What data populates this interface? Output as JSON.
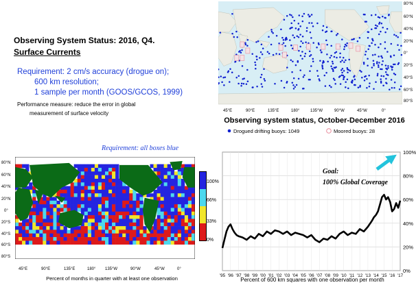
{
  "header": {
    "title": "Observing System Status:  2016, Q4.",
    "subtitle": "Surface Currents"
  },
  "requirement": {
    "line1": "Requirement: 2 cm/s accuracy (drogue on);",
    "line2": "600 km resolution;",
    "line3": "1 sample per month (GOOS/GCOS, 1999)"
  },
  "performance": {
    "line1": "Performance measure: reduce the error in global",
    "line2": "measurement of surface velocity"
  },
  "map_buoys": {
    "caption": "Observing system status, October-December 2016",
    "legend_drifting": "Drogued drifting buoys: 1049",
    "legend_moored": "Moored buoys: 28",
    "lat_labels": [
      "80°N",
      "60°N",
      "40°N",
      "20°N",
      "0°",
      "20°S",
      "40°S",
      "60°S",
      "80°S"
    ],
    "lon_labels": [
      "45°E",
      "90°E",
      "135°E",
      "180°",
      "135°W",
      "90°W",
      "45°W",
      "0°"
    ],
    "colors": {
      "ocean": "#d8eef5",
      "land": "#ecece4",
      "drifting": "#1020d0",
      "moored": "#e88a9a"
    }
  },
  "map_coverage": {
    "requirement": "Requirement: all boxes blue",
    "caption": "Percent of months in quarter with at least one observation",
    "lat_labels": [
      "80°N",
      "60°N",
      "40°N",
      "20°N",
      "0°",
      "20°S",
      "40°S",
      "60°S",
      "80°S"
    ],
    "lon_labels": [
      "45°E",
      "90°E",
      "135°E",
      "180°",
      "135°W",
      "90°W",
      "45°W",
      "0°"
    ],
    "legend": [
      {
        "label": "100%",
        "color": "#2424e0"
      },
      {
        "label": "66%",
        "color": "#4cd8ee"
      },
      {
        "label": "33%",
        "color": "#f2e62a"
      },
      {
        "label": "0%",
        "color": "#dd1a1a"
      }
    ],
    "colors": {
      "land": "#0b6b17",
      "background": "#ffffff"
    }
  },
  "chart_data": {
    "type": "line",
    "goal_line1": "Goal:",
    "goal_line2": "100% Global Coverage",
    "xlabel": "Percent of 600 km squares with one observation per month",
    "categories": [
      "'95",
      "'96",
      "'97",
      "'98",
      "'99",
      "'00",
      "'01",
      "'02",
      "'03",
      "'04",
      "'05",
      "'06",
      "'07",
      "'08",
      "'09",
      "'10",
      "'11",
      "'12",
      "'13",
      "'14",
      "'15",
      "'16",
      "'17"
    ],
    "yticks": [
      "0%",
      "20%",
      "40%",
      "60%",
      "80%",
      "100%"
    ],
    "ylim": [
      0,
      100
    ],
    "xlim": [
      1995,
      2017
    ],
    "grid": true,
    "series": [
      {
        "x": [
          1995.0,
          1995.25,
          1995.5,
          1995.75,
          1996.0,
          1996.25,
          1996.5,
          1996.75,
          1997.0,
          1997.5,
          1998.0,
          1998.5,
          1999.0,
          1999.5,
          2000.0,
          2000.5,
          2001.0,
          2001.5,
          2002.0,
          2002.5,
          2003.0,
          2003.5,
          2004.0,
          2004.5,
          2005.0,
          2005.5,
          2006.0,
          2006.5,
          2007.0,
          2007.5,
          2008.0,
          2008.5,
          2009.0,
          2009.5,
          2010.0,
          2010.5,
          2011.0,
          2011.5,
          2012.0,
          2012.5,
          2013.0,
          2013.5,
          2013.75,
          2014.0,
          2014.25,
          2014.5,
          2014.75,
          2015.0,
          2015.25,
          2015.5,
          2015.75,
          2016.0,
          2016.25,
          2016.5,
          2016.75,
          2017.0
        ],
        "y": [
          19,
          26,
          33,
          37,
          39,
          35,
          32,
          30,
          29,
          28,
          26,
          29,
          27,
          31,
          29,
          33,
          31,
          34,
          33,
          31,
          33,
          30,
          32,
          31,
          30,
          28,
          30,
          26,
          24,
          27,
          26,
          29,
          27,
          31,
          33,
          30,
          32,
          31,
          35,
          33,
          37,
          42,
          45,
          47,
          50,
          56,
          62,
          64,
          60,
          62,
          58,
          50,
          52,
          57,
          53,
          59
        ]
      }
    ]
  }
}
